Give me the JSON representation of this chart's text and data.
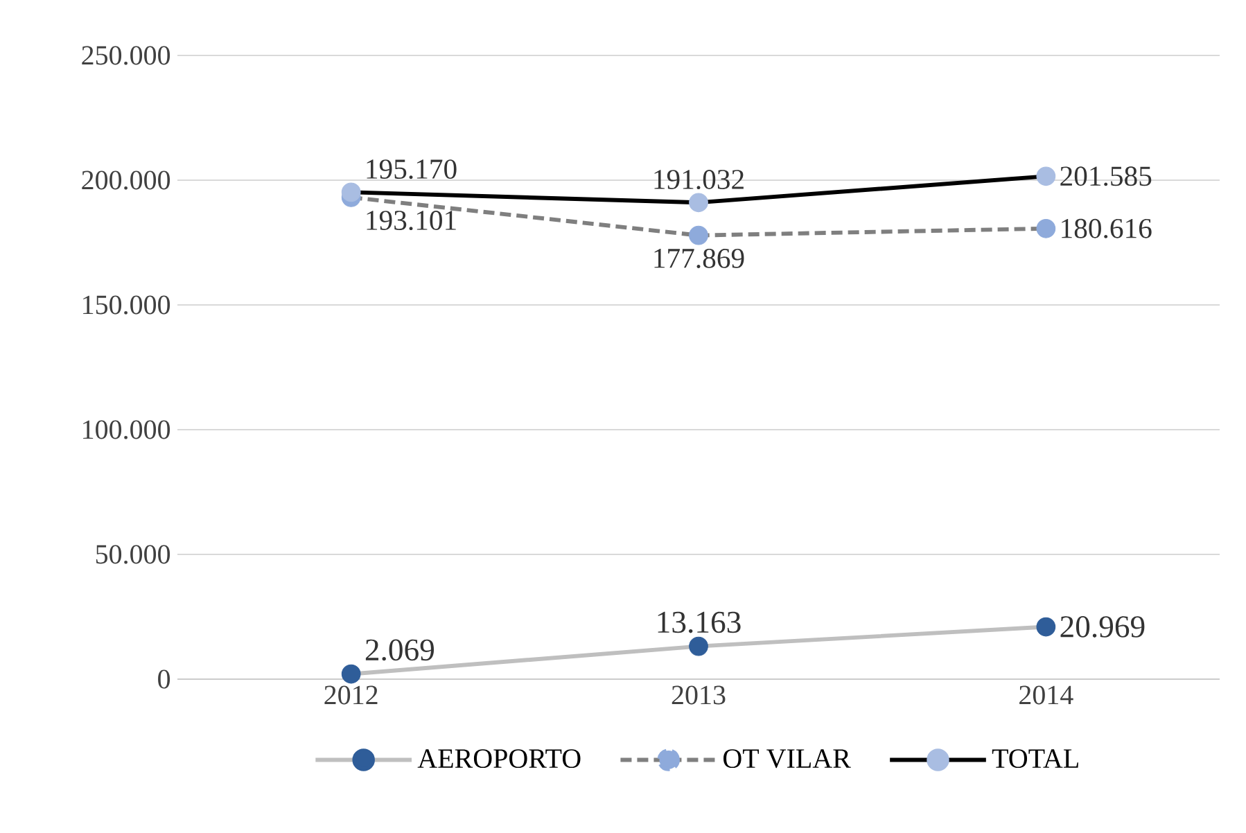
{
  "chart_data": {
    "type": "line",
    "categories": [
      "2012",
      "2013",
      "2014"
    ],
    "series": [
      {
        "name": "AEROPORTO",
        "color": "#bfbfbf",
        "colors": [
          "#2f5d99",
          "#2f5d99",
          "#2f5d99"
        ],
        "line_style": "solid",
        "values": [
          2069,
          13163,
          20969
        ],
        "value_labels": [
          "2.069",
          "13.163",
          "20.969"
        ]
      },
      {
        "name": "OT VILAR",
        "color": "#7f7f7f",
        "colors": [
          "#8eaadb",
          "#8eaadb",
          "#8eaadb"
        ],
        "line_style": "dashed",
        "values": [
          193101,
          177869,
          180616
        ],
        "value_labels": [
          "193.101",
          "177.869",
          "180.616"
        ]
      },
      {
        "name": "TOTAL",
        "color": "#000000",
        "colors": [
          "#a9bde2",
          "#a9bde2",
          "#a9bde2"
        ],
        "line_style": "solid",
        "values": [
          195170,
          191032,
          201585
        ],
        "value_labels": [
          "195.170",
          "191.032",
          "201.585"
        ]
      }
    ],
    "ylim": [
      0,
      250000
    ],
    "yticks": [
      0,
      {
        "value": 50000,
        "label": "50.000"
      },
      {
        "value": 100000,
        "label": "100.000"
      },
      {
        "value": 150000,
        "label": "150.000"
      },
      {
        "value": 200000,
        "label": "200.000"
      },
      {
        "value": 250000,
        "label": "250.000"
      }
    ],
    "grid": "y",
    "legend": "bottom",
    "marker": "circle"
  }
}
